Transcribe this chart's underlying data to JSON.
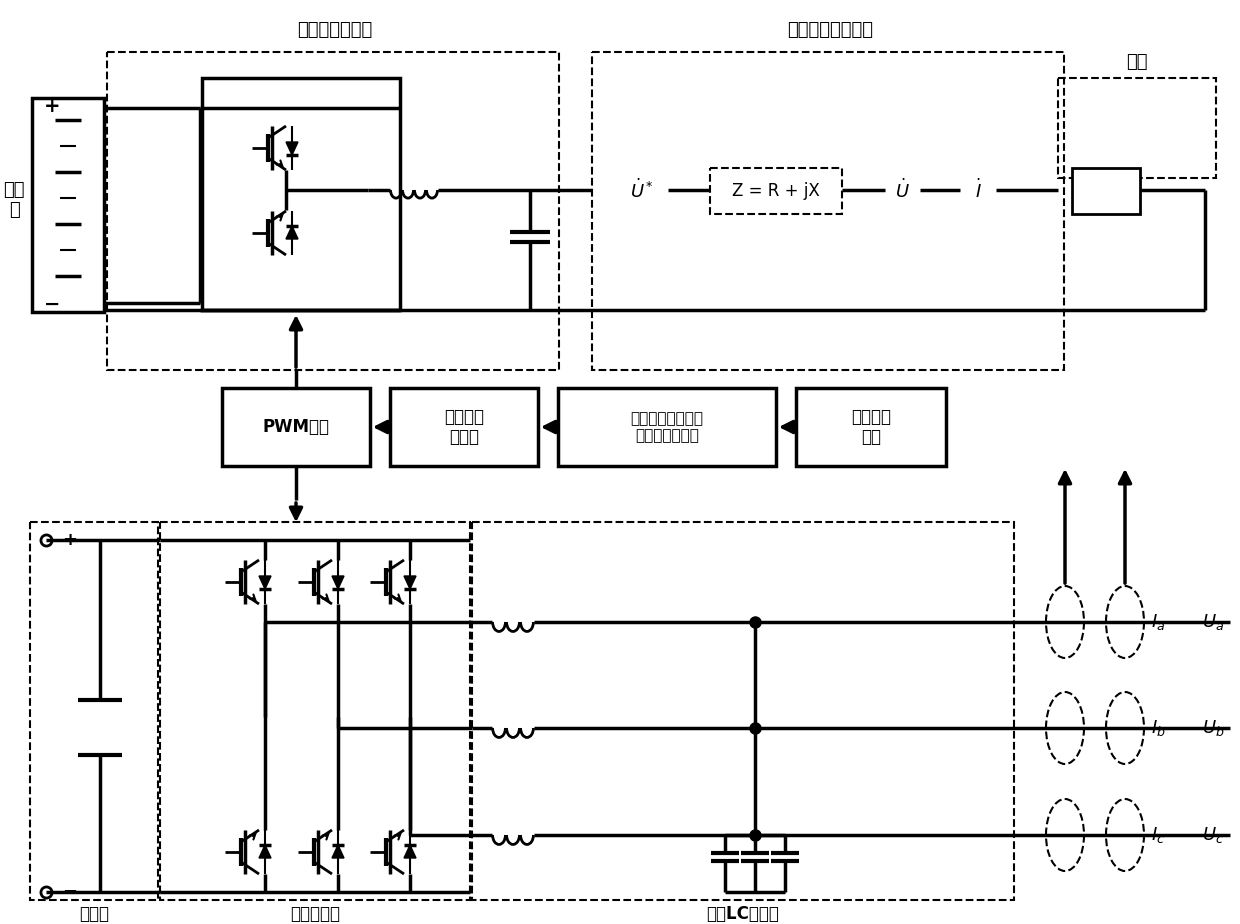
{
  "labels": {
    "voltage_inv": "电压源型逆变器",
    "line_imp": "线路阻抗模拟单元",
    "load": "负载",
    "pwm": "PWM调制",
    "volt_curr": "电压电流\n双闭环",
    "imp_eq": "基于起始阻抗角线\n路阻抗模拟方程",
    "coord": "坐标变换\n方程",
    "dc_side": "直流侧",
    "power_sw": "功率开关管",
    "lc_filter": "三相LC滤波器",
    "dc_src": "直流\n源",
    "Z_eq": "Z = R + jX",
    "U_star": "$\\dot{U}^*$",
    "U_dot": "$\\dot{U}$",
    "I_dot": "$\\dot{I}$",
    "Ia": "$I_a$",
    "Ib": "$I_b$",
    "Ic": "$I_c$",
    "Ua": "$U_a$",
    "Ub": "$U_b$",
    "Uc": "$U_c$"
  }
}
